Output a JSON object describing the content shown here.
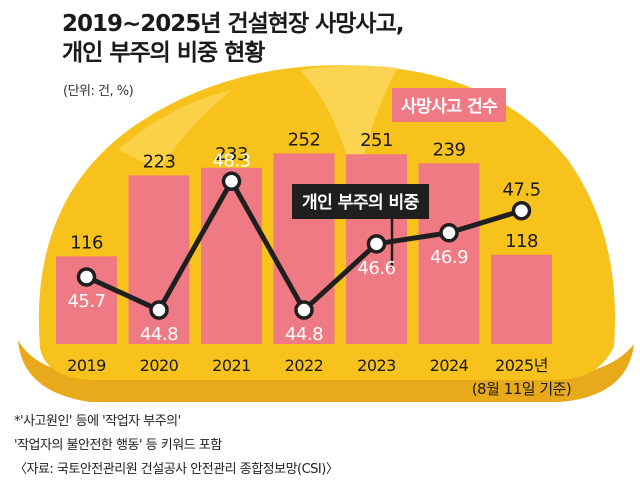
{
  "chart_data": {
    "type": "bar+line",
    "title_line1": "2019~2025년 건설현장 사망사고,",
    "title_line2": "개인 부주의 비중 현황",
    "unit_note": "(단위: 건, %)",
    "categories": [
      "2019",
      "2020",
      "2021",
      "2022",
      "2023",
      "2024",
      "2025년"
    ],
    "category_note": "(8월 11일 기준)",
    "series": [
      {
        "name": "사망사고 건수",
        "type": "bar",
        "color": "#f07a84",
        "values": [
          116,
          223,
          233,
          252,
          251,
          239,
          118
        ]
      },
      {
        "name": "개인 부주의 비중",
        "type": "line",
        "color": "#1f1f1f",
        "values": [
          45.7,
          44.8,
          48.3,
          44.8,
          46.6,
          46.9,
          47.5
        ]
      }
    ],
    "bar_ylim": [
      0,
      300
    ],
    "line_ylim": [
      44,
      49
    ],
    "footnotes": [
      "*'사고원인' 등에 '작업자 부주의'",
      "'작업자의 불안전한 행동' 등 키워드 포함",
      "〈자료: 국토안전관리원 건설공사 안전관리 종합정보망(CSI)〉"
    ]
  },
  "colors": {
    "helmet": "#f7c21b",
    "helmet_shade": "#e8a91a",
    "helmet_light": "#fbd75a",
    "bar": "#f07a84",
    "line": "#1f1f1f"
  }
}
